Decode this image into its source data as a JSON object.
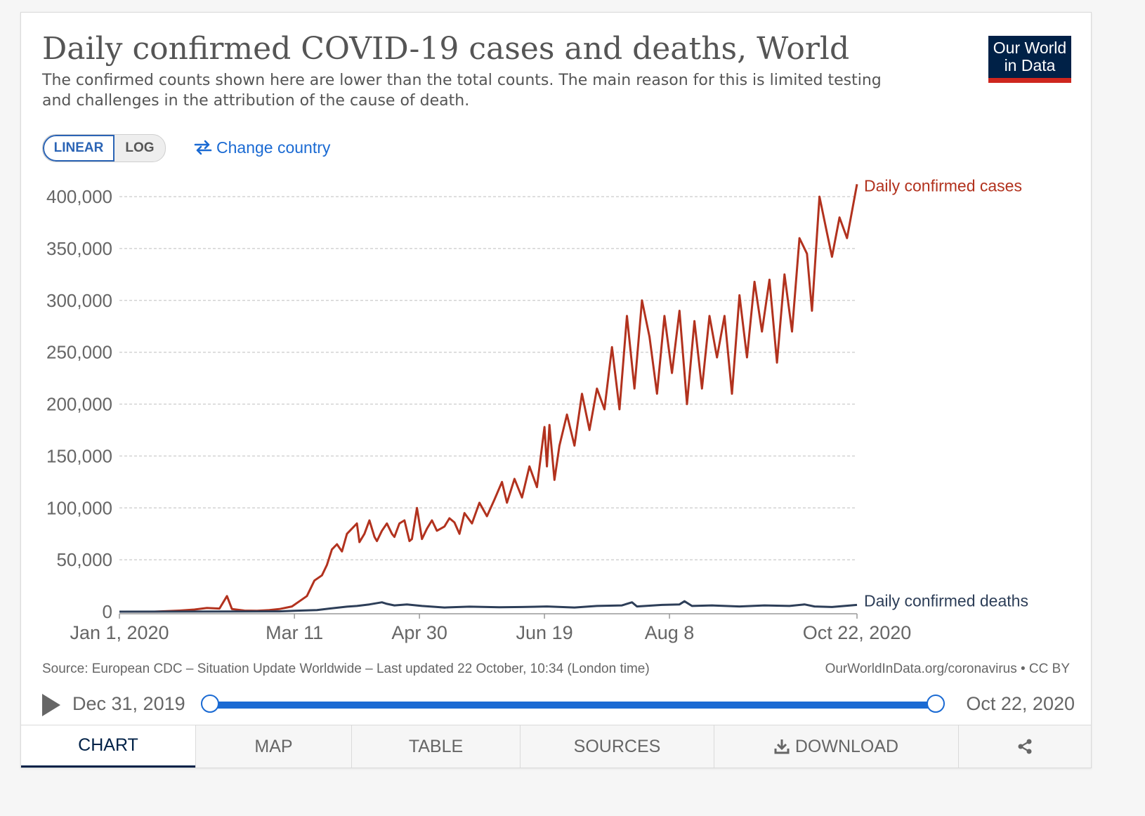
{
  "header": {
    "title": "Daily confirmed COVID-19 cases and deaths, World",
    "subtitle": "The confirmed counts shown here are lower than the total counts. The main reason for this is limited testing and challenges in the attribution of the cause of death."
  },
  "logo": {
    "line1": "Our World",
    "line2": "in Data",
    "colors": {
      "background": "#002147",
      "accent": "#ce261e"
    }
  },
  "controls": {
    "linear_label": "LINEAR",
    "log_label": "LOG",
    "selected_scale": "LINEAR",
    "change_country_label": "Change country",
    "change_country_icon": "swap-arrows-icon"
  },
  "chart_data": {
    "type": "line",
    "y_tick_labels": [
      "0",
      "50,000",
      "100,000",
      "150,000",
      "200,000",
      "250,000",
      "300,000",
      "350,000",
      "400,000"
    ],
    "y_ticks": [
      0,
      50000,
      100000,
      150000,
      200000,
      250000,
      300000,
      350000,
      400000
    ],
    "ylim": [
      0,
      400000
    ],
    "x_tick_labels": [
      "Jan 1, 2020",
      "Mar 11",
      "Apr 30",
      "Jun 19",
      "Aug 8",
      "Oct 22, 2020"
    ],
    "x_ticks": [
      "2020-01-01",
      "2020-03-11",
      "2020-04-30",
      "2020-06-19",
      "2020-08-08",
      "2020-10-22"
    ],
    "xlim": [
      "2020-01-01",
      "2020-10-22"
    ],
    "grid": "horizontal dashed",
    "legend": "line-end labels",
    "series": [
      {
        "name": "Daily confirmed cases",
        "color": "#b2321e",
        "points": [
          [
            "2020-01-01",
            0
          ],
          [
            "2020-01-15",
            0
          ],
          [
            "2020-01-25",
            1000
          ],
          [
            "2020-01-31",
            2000
          ],
          [
            "2020-02-05",
            3500
          ],
          [
            "2020-02-10",
            3000
          ],
          [
            "2020-02-13",
            15000
          ],
          [
            "2020-02-15",
            2500
          ],
          [
            "2020-02-20",
            1000
          ],
          [
            "2020-02-25",
            800
          ],
          [
            "2020-03-01",
            1500
          ],
          [
            "2020-03-05",
            2500
          ],
          [
            "2020-03-10",
            5000
          ],
          [
            "2020-03-13",
            10000
          ],
          [
            "2020-03-16",
            15000
          ],
          [
            "2020-03-19",
            30000
          ],
          [
            "2020-03-22",
            35000
          ],
          [
            "2020-03-24",
            45000
          ],
          [
            "2020-03-26",
            60000
          ],
          [
            "2020-03-28",
            65000
          ],
          [
            "2020-03-30",
            58000
          ],
          [
            "2020-04-01",
            75000
          ],
          [
            "2020-04-03",
            80000
          ],
          [
            "2020-04-05",
            85000
          ],
          [
            "2020-04-06",
            67000
          ],
          [
            "2020-04-08",
            75000
          ],
          [
            "2020-04-10",
            88000
          ],
          [
            "2020-04-12",
            72000
          ],
          [
            "2020-04-13",
            68000
          ],
          [
            "2020-04-15",
            78000
          ],
          [
            "2020-04-17",
            85000
          ],
          [
            "2020-04-19",
            75000
          ],
          [
            "2020-04-20",
            72000
          ],
          [
            "2020-04-22",
            85000
          ],
          [
            "2020-04-24",
            88000
          ],
          [
            "2020-04-26",
            68000
          ],
          [
            "2020-04-27",
            70000
          ],
          [
            "2020-04-29",
            100000
          ],
          [
            "2020-05-01",
            70000
          ],
          [
            "2020-05-03",
            80000
          ],
          [
            "2020-05-05",
            88000
          ],
          [
            "2020-05-07",
            78000
          ],
          [
            "2020-05-10",
            82000
          ],
          [
            "2020-05-12",
            90000
          ],
          [
            "2020-05-14",
            86000
          ],
          [
            "2020-05-16",
            75000
          ],
          [
            "2020-05-18",
            95000
          ],
          [
            "2020-05-21",
            85000
          ],
          [
            "2020-05-24",
            105000
          ],
          [
            "2020-05-27",
            92000
          ],
          [
            "2020-05-30",
            108000
          ],
          [
            "2020-06-02",
            125000
          ],
          [
            "2020-06-04",
            105000
          ],
          [
            "2020-06-07",
            128000
          ],
          [
            "2020-06-10",
            110000
          ],
          [
            "2020-06-13",
            140000
          ],
          [
            "2020-06-16",
            120000
          ],
          [
            "2020-06-19",
            178000
          ],
          [
            "2020-06-20",
            140000
          ],
          [
            "2020-06-21",
            180000
          ],
          [
            "2020-06-23",
            127000
          ],
          [
            "2020-06-25",
            160000
          ],
          [
            "2020-06-28",
            190000
          ],
          [
            "2020-07-01",
            160000
          ],
          [
            "2020-07-04",
            210000
          ],
          [
            "2020-07-07",
            175000
          ],
          [
            "2020-07-10",
            215000
          ],
          [
            "2020-07-13",
            195000
          ],
          [
            "2020-07-16",
            255000
          ],
          [
            "2020-07-19",
            195000
          ],
          [
            "2020-07-22",
            285000
          ],
          [
            "2020-07-25",
            215000
          ],
          [
            "2020-07-28",
            300000
          ],
          [
            "2020-07-31",
            265000
          ],
          [
            "2020-08-03",
            210000
          ],
          [
            "2020-08-06",
            285000
          ],
          [
            "2020-08-09",
            230000
          ],
          [
            "2020-08-12",
            290000
          ],
          [
            "2020-08-15",
            200000
          ],
          [
            "2020-08-18",
            280000
          ],
          [
            "2020-08-21",
            215000
          ],
          [
            "2020-08-24",
            285000
          ],
          [
            "2020-08-27",
            245000
          ],
          [
            "2020-08-30",
            285000
          ],
          [
            "2020-09-02",
            210000
          ],
          [
            "2020-09-05",
            305000
          ],
          [
            "2020-09-08",
            245000
          ],
          [
            "2020-09-11",
            318000
          ],
          [
            "2020-09-14",
            270000
          ],
          [
            "2020-09-17",
            320000
          ],
          [
            "2020-09-20",
            240000
          ],
          [
            "2020-09-23",
            325000
          ],
          [
            "2020-09-26",
            270000
          ],
          [
            "2020-09-29",
            360000
          ],
          [
            "2020-10-02",
            345000
          ],
          [
            "2020-10-04",
            290000
          ],
          [
            "2020-10-07",
            400000
          ],
          [
            "2020-10-10",
            365000
          ],
          [
            "2020-10-12",
            342000
          ],
          [
            "2020-10-15",
            380000
          ],
          [
            "2020-10-18",
            360000
          ],
          [
            "2020-10-22",
            412000
          ]
        ]
      },
      {
        "name": "Daily confirmed deaths",
        "color": "#2d3e58",
        "points": [
          [
            "2020-01-01",
            0
          ],
          [
            "2020-02-15",
            200
          ],
          [
            "2020-03-05",
            300
          ],
          [
            "2020-03-11",
            800
          ],
          [
            "2020-03-20",
            1500
          ],
          [
            "2020-03-25",
            3000
          ],
          [
            "2020-04-01",
            4800
          ],
          [
            "2020-04-05",
            5500
          ],
          [
            "2020-04-10",
            7000
          ],
          [
            "2020-04-15",
            9000
          ],
          [
            "2020-04-17",
            7500
          ],
          [
            "2020-04-20",
            6000
          ],
          [
            "2020-04-25",
            7000
          ],
          [
            "2020-05-01",
            5500
          ],
          [
            "2020-05-10",
            4000
          ],
          [
            "2020-05-20",
            4800
          ],
          [
            "2020-06-01",
            4200
          ],
          [
            "2020-06-10",
            4500
          ],
          [
            "2020-06-20",
            5000
          ],
          [
            "2020-07-01",
            4000
          ],
          [
            "2020-07-10",
            5500
          ],
          [
            "2020-07-20",
            6000
          ],
          [
            "2020-07-24",
            9000
          ],
          [
            "2020-07-26",
            5000
          ],
          [
            "2020-08-05",
            6500
          ],
          [
            "2020-08-12",
            7000
          ],
          [
            "2020-08-14",
            10000
          ],
          [
            "2020-08-17",
            5500
          ],
          [
            "2020-08-25",
            6000
          ],
          [
            "2020-09-05",
            5000
          ],
          [
            "2020-09-15",
            6000
          ],
          [
            "2020-09-25",
            5500
          ],
          [
            "2020-10-01",
            7000
          ],
          [
            "2020-10-05",
            5000
          ],
          [
            "2020-10-12",
            4500
          ],
          [
            "2020-10-22",
            6500
          ]
        ]
      }
    ]
  },
  "source_text": "Source: European CDC – Situation Update Worldwide – Last updated 22 October, 10:34 (London time)",
  "owid_text": "OurWorldInData.org/coronavirus • CC BY",
  "timeline": {
    "play_icon": "play-icon",
    "start_label": "Dec 31, 2019",
    "end_label": "Oct 22, 2020"
  },
  "tabs": [
    {
      "label": "CHART"
    },
    {
      "label": "MAP"
    },
    {
      "label": "TABLE"
    },
    {
      "label": "SOURCES"
    },
    {
      "label": "DOWNLOAD",
      "icon": "download-icon"
    },
    {
      "label": "",
      "icon": "share-icon"
    }
  ]
}
